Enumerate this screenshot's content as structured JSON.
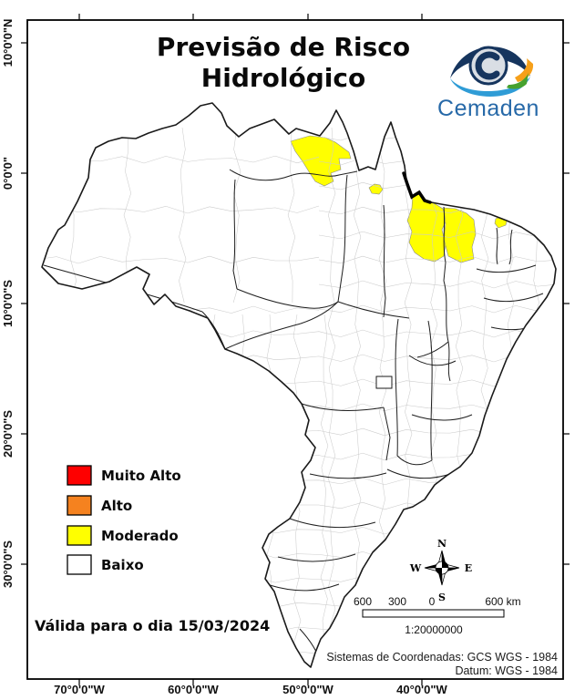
{
  "title": {
    "line1": "Previsão de Risco",
    "line2": "Hidrológico"
  },
  "logo": {
    "brand": "Cemaden",
    "brand_color": "#2769a8",
    "eye_dark_blue": "#16355e",
    "eye_light_blue": "#2f9cd6",
    "eye_orange": "#f6a01a",
    "eye_green": "#46a12f"
  },
  "legend": {
    "items": [
      {
        "label": "Muito Alto",
        "color": "#FE0000"
      },
      {
        "label": "Alto",
        "color": "#F5821F"
      },
      {
        "label": "Moderado",
        "color": "#FFFF00"
      },
      {
        "label": "Baixo",
        "color": "#FFFFFF"
      }
    ]
  },
  "validity_note": "Válida para o dia 15/03/2024",
  "map": {
    "x_axis_labels": [
      "70°0'0\"W",
      "60°0'0\"W",
      "50°0'0\"W",
      "40°0'0\"W"
    ],
    "y_axis_labels": [
      "10°0'0\"N",
      "0°0'0\"",
      "10°0'0\"S",
      "20°0'0\"S",
      "30°0'0\"S"
    ]
  },
  "scale_bar": {
    "tick_labels": [
      "600",
      "300",
      "0",
      "600 km"
    ],
    "ratio": "1:20000000"
  },
  "compass": {
    "north": "N",
    "south": "S",
    "east": "E",
    "west": "W"
  },
  "footer": {
    "coordinate_system": "Sistemas de Coordenadas: GCS WGS - 1984",
    "datum": "Datum: WGS - 1984"
  }
}
